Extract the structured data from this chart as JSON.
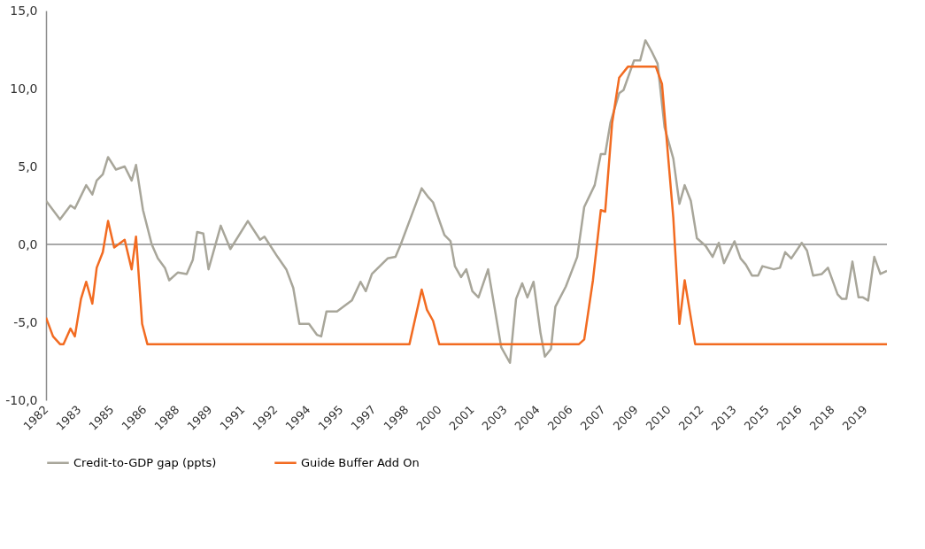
{
  "chart_data": {
    "type": "line",
    "xlim": [
      1982,
      2020.5
    ],
    "xticks": [
      1982,
      {
        "value": 1983.5,
        "label": "1983"
      },
      1985,
      {
        "value": 1986.5,
        "label": "1986"
      },
      1988,
      {
        "value": 1989.5,
        "label": "1989"
      },
      1991,
      {
        "value": 1992.5,
        "label": "1992"
      },
      1994,
      {
        "value": 1995.5,
        "label": "1995"
      },
      1997,
      {
        "value": 1998.5,
        "label": "1998"
      },
      2000,
      {
        "value": 2001.5,
        "label": "2001"
      },
      2003,
      {
        "value": 2004.5,
        "label": "2004"
      },
      2006,
      {
        "value": 2007.5,
        "label": "2007"
      },
      2009,
      {
        "value": 2010.5,
        "label": "2010"
      },
      2012,
      {
        "value": 2013.5,
        "label": "2013"
      },
      2015,
      {
        "value": 2016.5,
        "label": "2016"
      },
      2018,
      {
        "value": 2019.5,
        "label": "2019"
      }
    ],
    "ylim": [
      -10,
      15
    ],
    "yticks": [
      {
        "value": -10,
        "label": "-10,0"
      },
      {
        "value": -5,
        "label": "-5,0"
      },
      {
        "value": 0,
        "label": "0,0"
      },
      {
        "value": 5,
        "label": "5,0"
      },
      {
        "value": 10,
        "label": "10,0"
      },
      {
        "value": 15,
        "label": "15,0"
      }
    ],
    "grid": false,
    "legend": "bottom",
    "ref_lines": [
      {
        "axis": "y",
        "value": 0,
        "color": "#8c8c8c"
      }
    ],
    "series": [
      {
        "name": "Credit-to-GDP gap (ppts)",
        "color": "#a8a69a",
        "x": [
          1982.0,
          1982.64,
          1983.12,
          1983.32,
          1983.84,
          1984.12,
          1984.32,
          1984.6,
          1984.84,
          1985.2,
          1985.6,
          1985.92,
          1986.12,
          1986.44,
          1986.84,
          1987.12,
          1987.44,
          1987.64,
          1988.04,
          1988.44,
          1988.72,
          1988.92,
          1989.2,
          1989.44,
          1990.0,
          1990.44,
          1991.24,
          1991.8,
          1992.0,
          1992.6,
          1993.0,
          1993.32,
          1993.6,
          1994.04,
          1994.4,
          1994.6,
          1994.84,
          1995.32,
          1996.0,
          1996.4,
          1996.64,
          1996.92,
          1997.64,
          1998.0,
          1998.24,
          1998.64,
          1999.2,
          1999.52,
          1999.72,
          2000.04,
          2000.24,
          2000.52,
          2000.72,
          2001.0,
          2001.24,
          2001.52,
          2001.8,
          2002.24,
          2002.84,
          2003.24,
          2003.52,
          2003.8,
          2004.04,
          2004.32,
          2004.64,
          2004.84,
          2005.12,
          2005.32,
          2005.8,
          2006.32,
          2006.64,
          2007.12,
          2007.4,
          2007.6,
          2007.84,
          2008.24,
          2008.44,
          2008.92,
          2009.2,
          2009.44,
          2009.72,
          2010.0,
          2010.32,
          2010.72,
          2011.0,
          2011.24,
          2011.52,
          2011.8,
          2012.2,
          2012.52,
          2012.8,
          2013.04,
          2013.52,
          2013.8,
          2014.04,
          2014.32,
          2014.6,
          2014.8,
          2015.32,
          2015.6,
          2015.84,
          2016.12,
          2016.6,
          2016.84,
          2017.12,
          2017.52,
          2017.8,
          2018.24,
          2018.44,
          2018.64,
          2018.92,
          2019.2,
          2019.4,
          2019.64,
          2019.92,
          2020.2,
          2020.5
        ],
        "values": [
          2.8,
          1.6,
          2.5,
          2.3,
          3.8,
          3.2,
          4.1,
          4.5,
          5.6,
          4.8,
          5.0,
          4.1,
          5.1,
          2.2,
          0.0,
          -0.9,
          -1.5,
          -2.3,
          -1.8,
          -1.9,
          -1.0,
          0.8,
          0.7,
          -1.6,
          1.2,
          -0.3,
          1.5,
          0.3,
          0.5,
          -0.8,
          -1.6,
          -2.8,
          -5.1,
          -5.1,
          -5.8,
          -5.9,
          -4.3,
          -4.3,
          -3.6,
          -2.4,
          -3.0,
          -1.9,
          -0.9,
          -0.8,
          0.0,
          1.5,
          3.6,
          3.0,
          2.7,
          1.4,
          0.6,
          0.2,
          -1.4,
          -2.1,
          -1.6,
          -3.0,
          -3.4,
          -1.6,
          -6.6,
          -7.6,
          -3.5,
          -2.5,
          -3.4,
          -2.4,
          -5.7,
          -7.2,
          -6.7,
          -4.0,
          -2.7,
          -0.8,
          2.4,
          3.8,
          5.8,
          5.8,
          7.8,
          9.7,
          9.9,
          11.8,
          11.8,
          13.1,
          12.4,
          11.6,
          7.5,
          5.5,
          2.6,
          3.8,
          2.8,
          0.4,
          -0.1,
          -0.8,
          0.1,
          -1.2,
          0.2,
          -0.9,
          -1.3,
          -2.0,
          -2.0,
          -1.4,
          -1.6,
          -1.5,
          -0.5,
          -0.9,
          0.1,
          -0.4,
          -2.0,
          -1.9,
          -1.5,
          -3.2,
          -3.5,
          -3.5,
          -1.1,
          -3.4,
          -3.4,
          -3.6,
          -0.8,
          -1.9,
          -1.7
        ]
      },
      {
        "name": "Guide Buffer Add On",
        "color": "#f26b21",
        "x": [
          1982.0,
          1982.32,
          1982.64,
          1982.8,
          1983.12,
          1983.32,
          1983.6,
          1983.84,
          1984.12,
          1984.32,
          1984.6,
          1984.84,
          1985.12,
          1985.6,
          1985.92,
          1986.12,
          1986.4,
          1986.64,
          1998.64,
          1999.2,
          1999.44,
          1999.72,
          2000.0,
          2006.4,
          2006.64,
          2007.04,
          2007.4,
          2007.6,
          2007.92,
          2008.24,
          2008.64,
          2009.92,
          2010.2,
          2010.72,
          2011.0,
          2011.24,
          2011.72,
          2020.5
        ],
        "values": [
          -4.7,
          -5.9,
          -6.4,
          -6.4,
          -5.4,
          -5.9,
          -3.5,
          -2.4,
          -3.8,
          -1.5,
          -0.5,
          1.5,
          -0.2,
          0.3,
          -1.6,
          0.5,
          -5.1,
          -6.4,
          -6.4,
          -2.9,
          -4.2,
          -4.9,
          -6.4,
          -6.4,
          -6.1,
          -2.3,
          2.2,
          2.1,
          7.8,
          10.7,
          11.4,
          11.4,
          10.3,
          1.7,
          -5.1,
          -2.3,
          -6.4,
          -6.4
        ]
      }
    ]
  }
}
